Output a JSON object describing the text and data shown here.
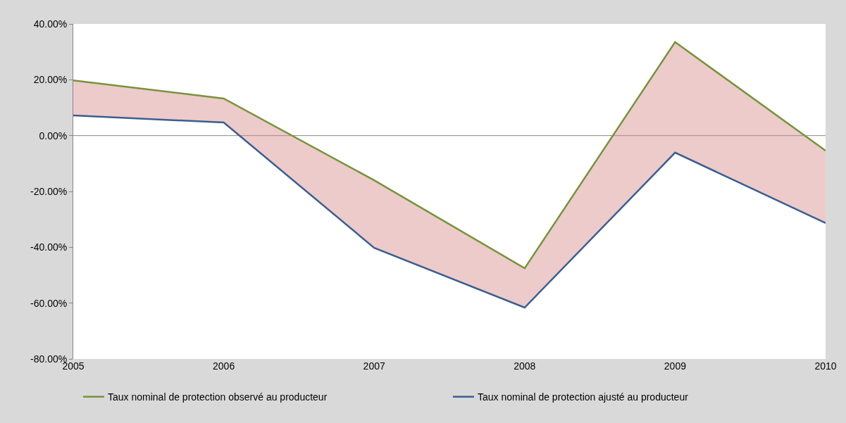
{
  "chart_data": {
    "type": "line",
    "x": [
      2005,
      2006,
      2007,
      2008,
      2009,
      2010
    ],
    "xlim": [
      2005,
      2010
    ],
    "xticks": [
      2005,
      2006,
      2007,
      2008,
      2009,
      2010
    ],
    "ylim": [
      -80,
      40
    ],
    "yticks": [
      {
        "value": -80,
        "label": "-80.00%"
      },
      {
        "value": -60,
        "label": "-60.00%"
      },
      {
        "value": -40,
        "label": "-40.00%"
      },
      {
        "value": -20,
        "label": "-20.00%"
      },
      {
        "value": 0,
        "label": "0.00%"
      },
      {
        "value": 20,
        "label": "20.00%"
      },
      {
        "value": 40,
        "label": "40.00%"
      }
    ],
    "grid": false,
    "ref_lines": [
      {
        "axis": "y",
        "value": 0,
        "color": "#868686"
      }
    ],
    "legend": "bottom",
    "series": [
      {
        "name": "Taux nominal de protection observé au producteur",
        "color": "#77933c",
        "values": [
          19.8,
          13.3,
          -16,
          -47.5,
          33.5,
          -5.4
        ],
        "lower": [
          7.2,
          4.7,
          -40.2,
          -61.6,
          -6.1,
          -31.3
        ],
        "upper": [
          19.8,
          13.3,
          -16,
          -47.5,
          33.5,
          -5.4
        ]
      },
      {
        "name": "Taux nominal de protection ajusté au producteur",
        "color": "#3b5e91",
        "values": [
          7.2,
          4.7,
          -40.2,
          -61.6,
          -6.1,
          -31.3
        ]
      }
    ]
  }
}
